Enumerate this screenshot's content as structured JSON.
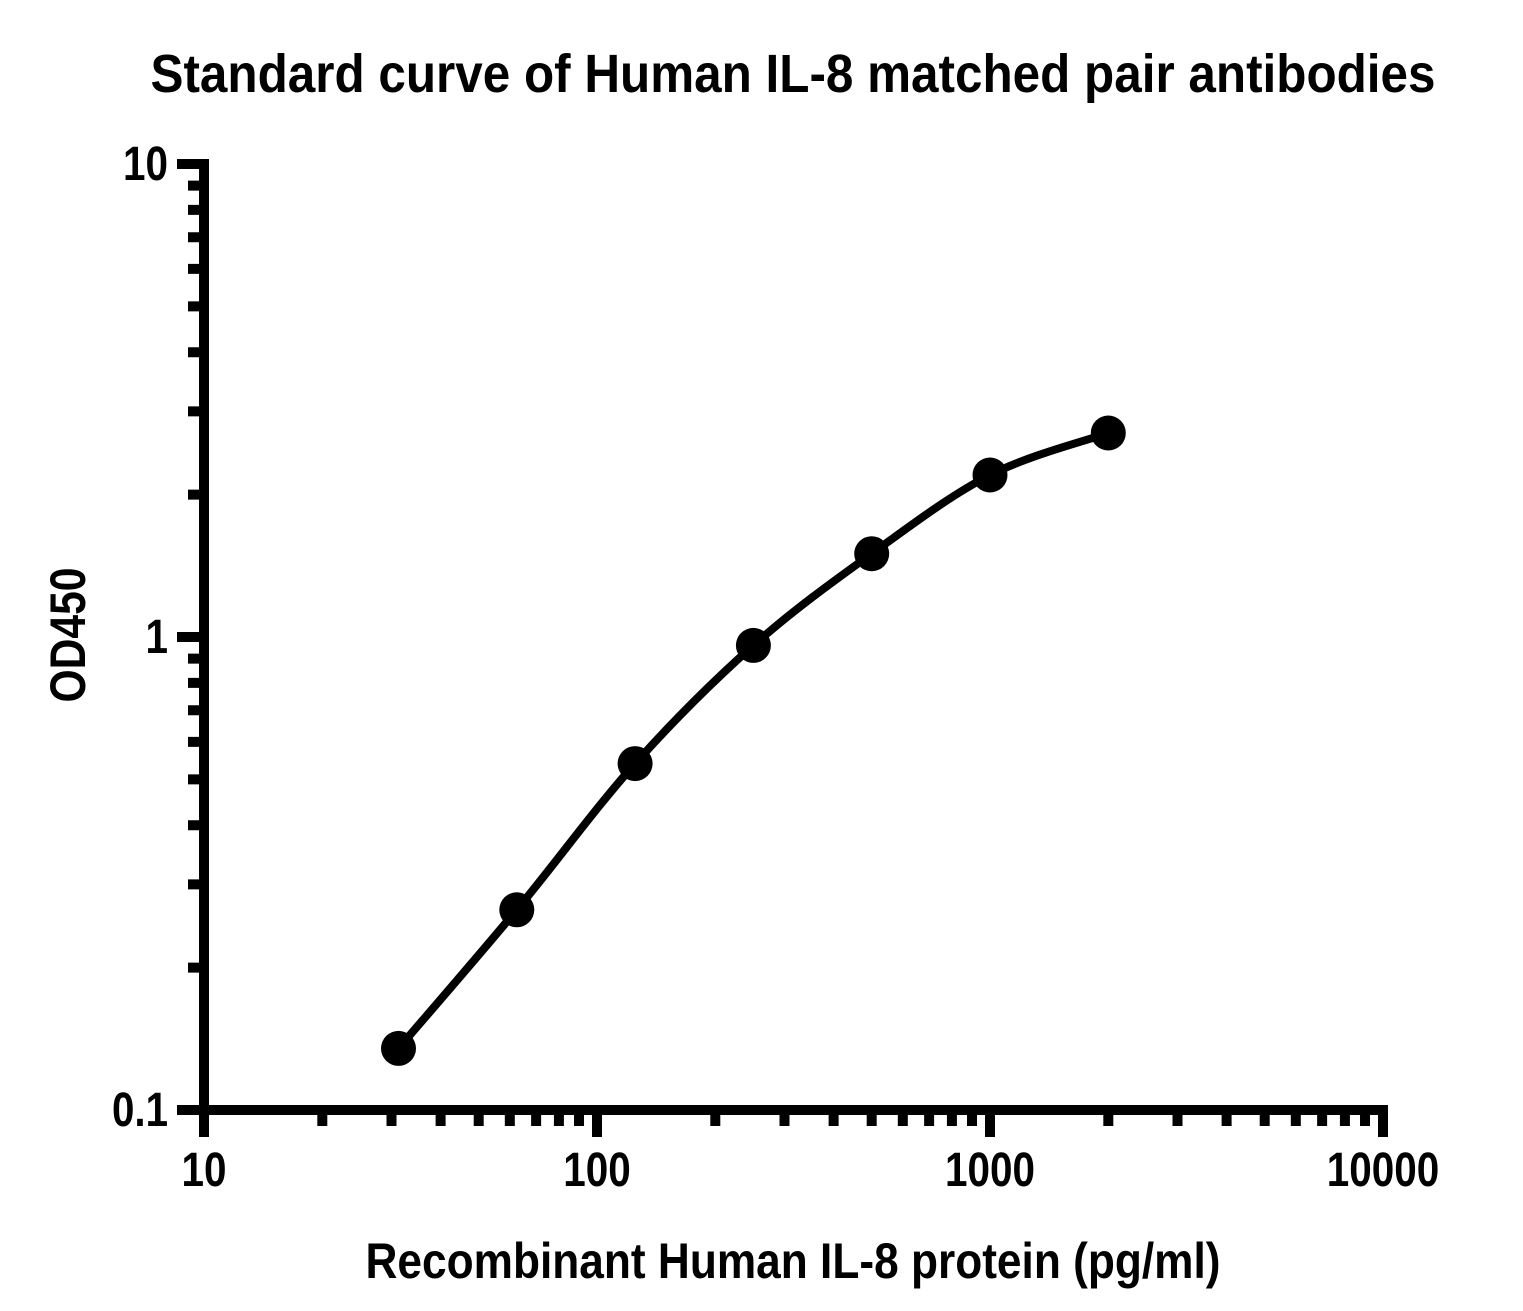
{
  "chart_data": {
    "type": "line",
    "title": "Standard curve of Human IL-8 matched pair antibodies",
    "xlabel": "Recombinant Human IL-8 protein (pg/ml)",
    "ylabel": "OD450",
    "x_scale": "log",
    "y_scale": "log",
    "xlim": [
      10,
      10000
    ],
    "ylim": [
      0.1,
      10
    ],
    "x_ticks": [
      10,
      100,
      1000,
      10000
    ],
    "x_tick_labels": [
      "10",
      "100",
      "1000",
      "10000"
    ],
    "y_ticks": [
      10,
      1,
      0.1
    ],
    "y_tick_labels": [
      "10",
      "1",
      "0.1"
    ],
    "grid": false,
    "legend": false,
    "series": [
      {
        "x": [
          31.25,
          62.5,
          125,
          250,
          500,
          1000,
          2000
        ],
        "y": [
          0.135,
          0.265,
          0.54,
          0.96,
          1.5,
          2.2,
          2.7
        ],
        "marker": "filled-circle",
        "line": "smooth",
        "color": "#000000"
      }
    ]
  },
  "colors": {
    "foreground": "#000000",
    "background": "#ffffff"
  }
}
